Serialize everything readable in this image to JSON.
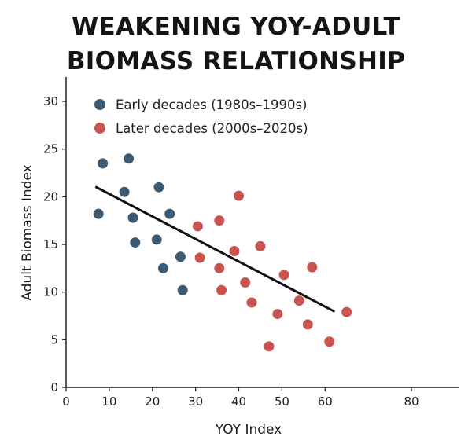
{
  "chart_data": {
    "type": "scatter",
    "title_lines": [
      "WEAKENING YOY-ADULT",
      "BIOMASS RELATIONSHIP"
    ],
    "xlabel": "YOY Index",
    "ylabel": "Adult Biomass Index",
    "xlim": [
      0,
      80
    ],
    "ylim": [
      0,
      30
    ],
    "xticks": [
      0,
      10,
      20,
      30,
      40,
      50,
      60,
      80
    ],
    "yticks": [
      0,
      5,
      10,
      15,
      20,
      25,
      30
    ],
    "grid": false,
    "legend_position": "top-left",
    "series": [
      {
        "name": "Early decades (1980s–1990s)",
        "color": "#3d5a73",
        "points": [
          [
            7.5,
            18.2
          ],
          [
            8.5,
            23.5
          ],
          [
            13.5,
            20.5
          ],
          [
            14.5,
            24.0
          ],
          [
            15.5,
            17.8
          ],
          [
            16.0,
            15.2
          ],
          [
            21.0,
            15.5
          ],
          [
            21.5,
            21.0
          ],
          [
            22.5,
            12.5
          ],
          [
            24.0,
            18.2
          ],
          [
            26.5,
            13.7
          ],
          [
            27.0,
            10.2
          ]
        ]
      },
      {
        "name": "Later decades (2000s–2020s)",
        "color": "#c9534f",
        "points": [
          [
            30.5,
            16.9
          ],
          [
            31.0,
            13.6
          ],
          [
            35.5,
            17.5
          ],
          [
            35.5,
            12.5
          ],
          [
            36.0,
            10.2
          ],
          [
            39.0,
            14.3
          ],
          [
            40.0,
            20.1
          ],
          [
            41.5,
            11.0
          ],
          [
            43.0,
            8.9
          ],
          [
            45.0,
            14.8
          ],
          [
            47.0,
            4.3
          ],
          [
            49.0,
            7.7
          ],
          [
            50.5,
            11.8
          ],
          [
            54.0,
            9.1
          ],
          [
            56.0,
            6.6
          ],
          [
            57.0,
            12.6
          ],
          [
            61.0,
            4.8
          ],
          [
            65.0,
            7.9
          ]
        ]
      }
    ],
    "trend_line": {
      "color": "#111111",
      "points": [
        [
          7,
          21.0
        ],
        [
          62,
          8.0
        ]
      ]
    }
  }
}
